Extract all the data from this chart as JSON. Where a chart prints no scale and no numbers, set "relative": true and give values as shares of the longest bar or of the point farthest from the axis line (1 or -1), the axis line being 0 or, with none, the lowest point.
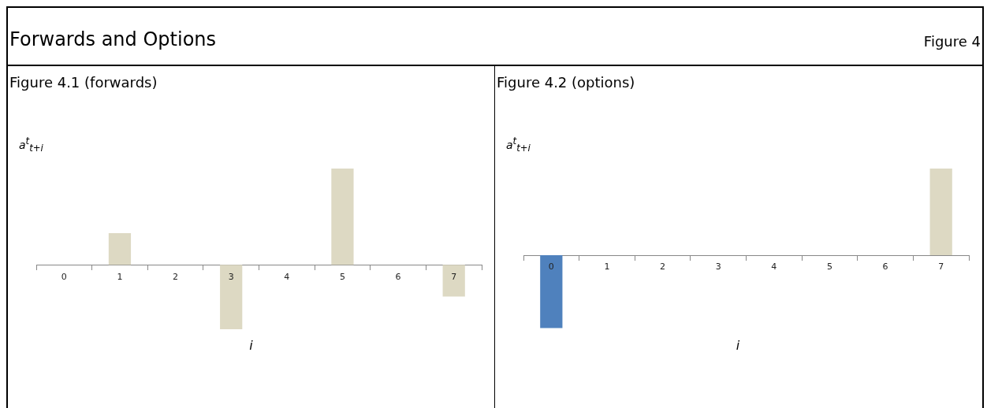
{
  "chart_data": [
    {
      "type": "other",
      "title": "Forwards and Options",
      "annotations": [
        "Figure 4"
      ]
    },
    {
      "type": "bar",
      "title": "Figure 4.1 (forwards)",
      "xlabel": "i",
      "ylabel": "a$^{t}$$_{t+i}$",
      "relative": true,
      "legend": false,
      "categories": [
        "0",
        "1",
        "2",
        "3",
        "4",
        "5",
        "6",
        "7"
      ],
      "values": [
        0,
        0.33,
        0,
        -0.67,
        0,
        1,
        0,
        -0.33
      ],
      "colors": [
        "#ddd9c3",
        "#ddd9c3",
        "#ddd9c3",
        "#ddd9c3",
        "#ddd9c3",
        "#ddd9c3",
        "#ddd9c3",
        "#ddd9c3"
      ]
    },
    {
      "type": "bar",
      "title": "Figure 4.2 (options)",
      "xlabel": "i",
      "ylabel": "a$^{t}$$_{t+i}$",
      "relative": true,
      "legend": false,
      "categories": [
        "0",
        "1",
        "2",
        "3",
        "4",
        "5",
        "6",
        "7"
      ],
      "values": [
        -0.84,
        0,
        0,
        0,
        0,
        0,
        0,
        1
      ],
      "colors": [
        "#4f81bd",
        "#ddd9c3",
        "#ddd9c3",
        "#ddd9c3",
        "#ddd9c3",
        "#ddd9c3",
        "#ddd9c3",
        "#ddd9c3"
      ]
    }
  ]
}
